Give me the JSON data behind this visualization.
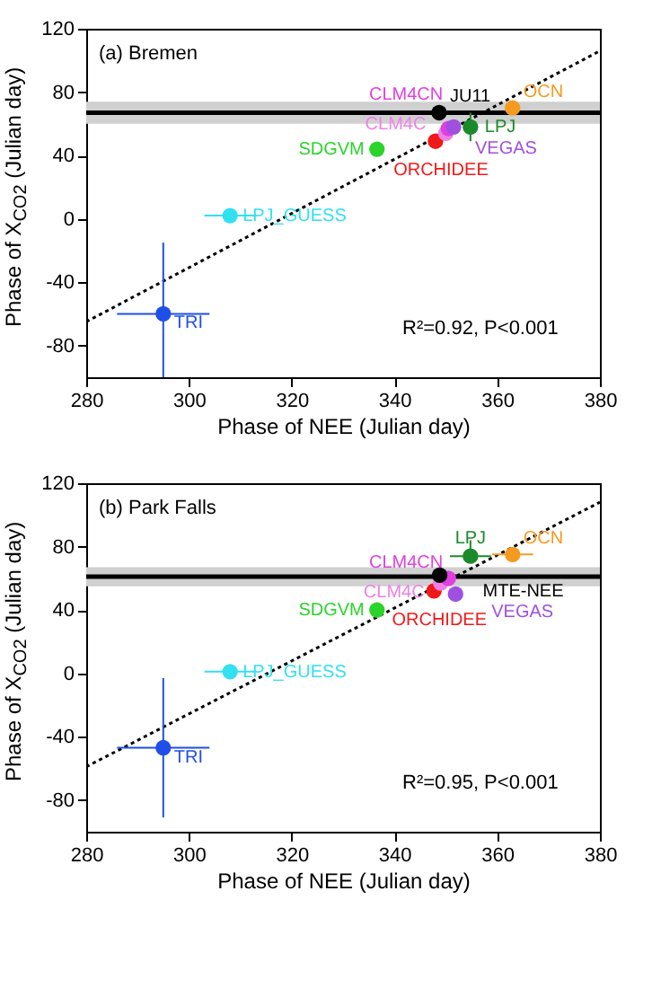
{
  "chart_data": [
    {
      "type": "scatter",
      "title": "(a) Bremen",
      "xlabel": "Phase of NEE (Julian day)",
      "ylabel": "Phase of X$_{CO2}$ (Julian day)",
      "xlim": [
        280,
        380
      ],
      "ylim": [
        -100,
        120
      ],
      "xticks": [
        280,
        300,
        320,
        340,
        360,
        380
      ],
      "yticks": [
        -80,
        -40,
        0,
        40,
        80,
        120
      ],
      "grid": false,
      "marker": "circle",
      "annotations": [
        "R²=0.92, P<0.001"
      ],
      "ref_lines": [
        {
          "axis": "y",
          "value": 67,
          "color": "#000000"
        }
      ],
      "bands": [
        {
          "axis": "y",
          "from": 60,
          "to": 74,
          "color": "#d0d0d0"
        }
      ],
      "series": [
        {
          "name": "TRI",
          "color": "#1f4fe6",
          "x": [
            295
          ],
          "values": [
            -60
          ],
          "errors": [
            [
              -100,
              -15
            ]
          ],
          "xerrors": [
            9
          ]
        },
        {
          "name": "LPJ_GUESS",
          "color": "#33e0f0",
          "x": [
            308
          ],
          "values": [
            2
          ],
          "errors": [
            4
          ],
          "xerrors": [
            5
          ]
        },
        {
          "name": "SDGVM",
          "color": "#2bd42b",
          "x": [
            336.6
          ],
          "values": [
            44
          ],
          "errors": [
            4
          ]
        },
        {
          "name": "ORCHIDEE",
          "color": "#f01818",
          "x": [
            348
          ],
          "values": [
            49
          ]
        },
        {
          "name": "CLM4C",
          "color": "#f080e8",
          "x": [
            350
          ],
          "values": [
            54
          ]
        },
        {
          "name": "CLM4CN",
          "color": "#e040e0",
          "x": [
            350.5
          ],
          "values": [
            57
          ]
        },
        {
          "name": "VEGAS",
          "color": "#a050e0",
          "x": [
            351.5
          ],
          "values": [
            58
          ]
        },
        {
          "name": "LPJ",
          "color": "#1a8a2a",
          "x": [
            354.8
          ],
          "values": [
            58
          ],
          "errors": [
            9
          ]
        },
        {
          "name": "JU11",
          "color": "#000000",
          "x": [
            348.7
          ],
          "values": [
            67
          ]
        },
        {
          "name": "OCN",
          "color": "#f59a20",
          "x": [
            363
          ],
          "values": [
            70
          ]
        },
        {
          "type": "line",
          "color": "#000000",
          "line_style": "dotted",
          "marker": "none",
          "x": [
            280,
            380
          ],
          "values": [
            -65,
            106
          ]
        }
      ]
    },
    {
      "type": "scatter",
      "title": "(b) Park Falls",
      "xlabel": "Phase of NEE (Julian day)",
      "ylabel": "Phase of X$_{CO2}$ (Julian day)",
      "xlim": [
        280,
        380
      ],
      "ylim": [
        -100,
        120
      ],
      "xticks": [
        280,
        300,
        320,
        340,
        360,
        380
      ],
      "yticks": [
        -80,
        -40,
        0,
        40,
        80,
        120
      ],
      "grid": false,
      "marker": "circle",
      "annotations": [
        "R²=0.95, P<0.001"
      ],
      "ref_lines": [
        {
          "axis": "y",
          "value": 61,
          "color": "#000000"
        }
      ],
      "bands": [
        {
          "axis": "y",
          "from": 55,
          "to": 67,
          "color": "#d0d0d0"
        }
      ],
      "series": [
        {
          "name": "TRI",
          "color": "#1f4fe6",
          "x": [
            295
          ],
          "values": [
            -47
          ],
          "errors": [
            44
          ],
          "xerrors": [
            9
          ]
        },
        {
          "name": "LPJ_GUESS",
          "color": "#33e0f0",
          "x": [
            308
          ],
          "values": [
            1
          ],
          "errors": [
            4
          ],
          "xerrors": [
            5
          ]
        },
        {
          "name": "SDGVM",
          "color": "#2bd42b",
          "x": [
            336.6
          ],
          "values": [
            40
          ],
          "errors": [
            4
          ]
        },
        {
          "name": "ORCHIDEE",
          "color": "#f01818",
          "x": [
            347.7
          ],
          "values": [
            52
          ]
        },
        {
          "name": "CLM4C",
          "color": "#f080e8",
          "x": [
            349
          ],
          "values": [
            57
          ]
        },
        {
          "name": "CLM4CN",
          "color": "#e040e0",
          "x": [
            350.5
          ],
          "values": [
            60
          ]
        },
        {
          "name": "VEGAS",
          "color": "#a050e0",
          "x": [
            351.9
          ],
          "values": [
            50
          ]
        },
        {
          "name": "LPJ",
          "color": "#1a8a2a",
          "x": [
            354.8
          ],
          "values": [
            74
          ],
          "errors": [
            [
              74,
              84
            ]
          ],
          "xerrors": [
            4
          ]
        },
        {
          "name": "MTE-NEE",
          "color": "#000000",
          "x": [
            348.8
          ],
          "values": [
            62
          ]
        },
        {
          "name": "OCN",
          "color": "#f59a20",
          "x": [
            363
          ],
          "values": [
            75
          ],
          "xerrors": [
            4
          ]
        },
        {
          "type": "line",
          "color": "#000000",
          "line_style": "dotted",
          "marker": "none",
          "x": [
            280,
            380
          ],
          "values": [
            -59,
            108
          ]
        }
      ]
    }
  ]
}
